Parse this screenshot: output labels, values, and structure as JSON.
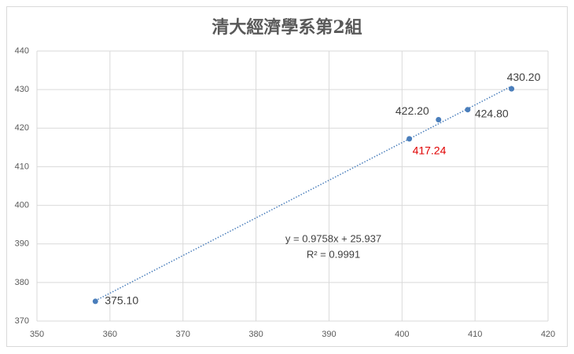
{
  "chart_data": {
    "type": "scatter",
    "title": "清大經濟學系第2組",
    "x": [
      358,
      401,
      405,
      409,
      415
    ],
    "values": [
      375.1,
      417.24,
      422.2,
      424.8,
      430.2
    ],
    "value_labels": [
      "375.10",
      "417.24",
      "422.20",
      "424.80",
      "430.20"
    ],
    "label_colors": [
      "#404040",
      "#e00000",
      "#404040",
      "#404040",
      "#404040"
    ],
    "color": "#4a7ebb",
    "xlim": [
      350,
      420
    ],
    "xticks": [
      350,
      360,
      370,
      380,
      390,
      400,
      410,
      420
    ],
    "ylim": [
      370,
      440
    ],
    "yticks": [
      370,
      380,
      390,
      400,
      410,
      420,
      430,
      440
    ],
    "grid": true,
    "trendline": {
      "slope": 0.9758,
      "intercept": 25.937,
      "equation": "y = 0.9758x + 25.937",
      "r_squared": "R² = 0.9991"
    }
  }
}
